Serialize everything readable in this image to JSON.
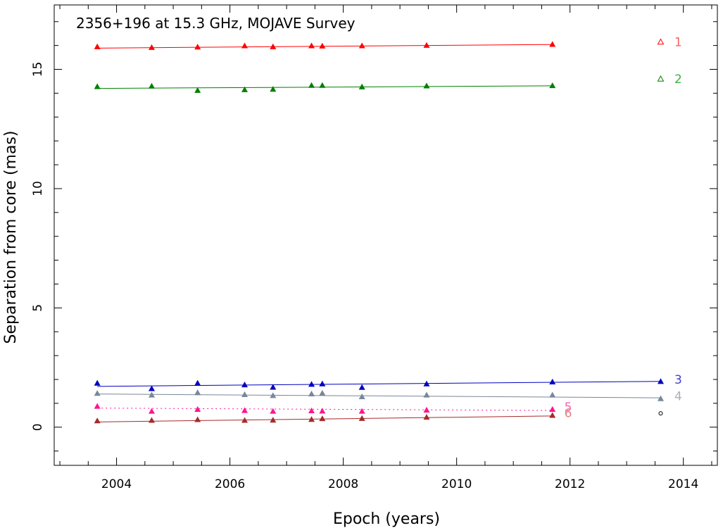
{
  "chart_data": {
    "type": "scatter",
    "title": "2356+196 at 15.3 GHz, MOJAVE Survey",
    "xlabel": "Epoch (years)",
    "ylabel": "Separation from core (mas)",
    "xlim": [
      2002.9,
      2014.6
    ],
    "ylim": [
      -1.6,
      17.7
    ],
    "xticks": [
      2004,
      2006,
      2008,
      2010,
      2012,
      2014
    ],
    "yticks": [
      0,
      5,
      10,
      15
    ],
    "grid": false,
    "series": [
      {
        "name": "1",
        "color": "#ff0000",
        "linestyle": "solid",
        "x": [
          2003.66,
          2004.62,
          2005.43,
          2006.26,
          2006.76,
          2007.44,
          2007.63,
          2008.33,
          2009.47,
          2011.69
        ],
        "y": [
          15.95,
          15.92,
          15.94,
          15.99,
          15.95,
          15.99,
          15.98,
          15.99,
          16.01,
          16.05
        ],
        "fit": [
          [
            2003.66,
            15.89
          ],
          [
            2011.69,
            16.04
          ]
        ],
        "projected": [
          [
            2013.6,
            16.15
          ]
        ],
        "projected_marker": "open-triangle"
      },
      {
        "name": "2",
        "color": "#008000",
        "linestyle": "solid",
        "x": [
          2003.66,
          2004.62,
          2005.43,
          2006.26,
          2006.76,
          2007.44,
          2007.63,
          2008.33,
          2009.47,
          2011.69
        ],
        "y": [
          14.28,
          14.3,
          14.12,
          14.15,
          14.17,
          14.33,
          14.33,
          14.27,
          14.31,
          14.32
        ],
        "fit": [
          [
            2003.66,
            14.2
          ],
          [
            2011.69,
            14.31
          ]
        ],
        "projected": [
          [
            2013.6,
            14.6
          ]
        ],
        "projected_marker": "open-triangle"
      },
      {
        "name": "3",
        "color": "#0000c0",
        "linestyle": "solid",
        "x": [
          2003.66,
          2004.62,
          2005.43,
          2006.26,
          2006.76,
          2007.44,
          2007.63,
          2008.33,
          2009.47,
          2011.69,
          2013.6
        ],
        "y": [
          1.85,
          1.62,
          1.85,
          1.78,
          1.68,
          1.8,
          1.82,
          1.67,
          1.82,
          1.9,
          1.92
        ],
        "fit": [
          [
            2003.66,
            1.71
          ],
          [
            2013.6,
            1.92
          ]
        ]
      },
      {
        "name": "4",
        "color": "#778899",
        "linestyle": "solid",
        "x": [
          2003.66,
          2004.62,
          2005.43,
          2006.26,
          2006.76,
          2007.44,
          2007.63,
          2008.33,
          2009.47,
          2011.69,
          2013.6
        ],
        "y": [
          1.42,
          1.35,
          1.45,
          1.37,
          1.33,
          1.4,
          1.43,
          1.28,
          1.35,
          1.35,
          1.2
        ],
        "fit": [
          [
            2003.66,
            1.39
          ],
          [
            2013.6,
            1.23
          ]
        ]
      },
      {
        "name": "5",
        "color": "#ff1493",
        "linestyle": "dotted",
        "x": [
          2003.66,
          2004.62,
          2005.43,
          2006.26,
          2006.76,
          2007.44,
          2007.63,
          2008.33,
          2009.47,
          2011.69
        ],
        "y": [
          0.88,
          0.67,
          0.75,
          0.7,
          0.67,
          0.69,
          0.68,
          0.67,
          0.72,
          0.75
        ],
        "fit": [
          [
            2003.66,
            0.8
          ],
          [
            2011.69,
            0.7
          ]
        ]
      },
      {
        "name": "6",
        "color": "#a52a2a",
        "linestyle": "solid",
        "x": [
          2003.66,
          2004.62,
          2005.43,
          2006.26,
          2006.76,
          2007.44,
          2007.63,
          2008.33,
          2009.47,
          2011.69
        ],
        "y": [
          0.27,
          0.29,
          0.32,
          0.29,
          0.3,
          0.33,
          0.36,
          0.37,
          0.42,
          0.5
        ],
        "fit": [
          [
            2003.66,
            0.22
          ],
          [
            2011.69,
            0.47
          ]
        ]
      }
    ],
    "right_labels": [
      {
        "text": "1",
        "y": 16.15,
        "color": "#ff6060"
      },
      {
        "text": "2",
        "y": 14.6,
        "color": "#3cb043"
      },
      {
        "text": "3",
        "y": 2.0,
        "color": "#4040d0"
      },
      {
        "text": "4",
        "y": 1.3,
        "color": "#a8b0b8"
      }
    ],
    "inner_labels": [
      {
        "text": "5",
        "x": 2011.9,
        "y": 0.85,
        "color": "#ff60b0"
      },
      {
        "text": "6",
        "x": 2011.9,
        "y": 0.6,
        "color": "#e08080"
      }
    ],
    "extra_marker": {
      "x": 2013.6,
      "y": 0.58,
      "shape": "open-circle",
      "color": "#000000"
    }
  }
}
